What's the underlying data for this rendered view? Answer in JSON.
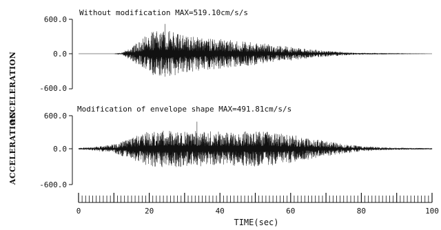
{
  "chart_data": [
    {
      "type": "line",
      "title": "Without modification  MAX=519.10cm/s/s",
      "ylabel": "ACCELERATION",
      "xlabel": "",
      "xlim": [
        0,
        100
      ],
      "ylim": [
        -600,
        600
      ],
      "yticks": [
        "600.0",
        "0.0",
        "-600.0"
      ],
      "max_abs": 519.1,
      "envelope_rise": [
        12,
        19
      ],
      "envelope_decay": [
        28,
        72
      ],
      "series": [
        {
          "values_note": "",
          "x": [
            0,
            10,
            12,
            15,
            18,
            20,
            22,
            25,
            28,
            30,
            35,
            40,
            45,
            50,
            55,
            60,
            65,
            70,
            75,
            80,
            85,
            90,
            95,
            100
          ],
          "amplitude": [
            0,
            0,
            10,
            120,
            260,
            370,
            400,
            420,
            380,
            330,
            290,
            260,
            230,
            200,
            160,
            120,
            80,
            50,
            30,
            15,
            8,
            4,
            2,
            0
          ]
        }
      ]
    },
    {
      "type": "line",
      "title": "Modification of envelope shape  MAX=491.81cm/s/s",
      "ylabel": "ACCELERATION",
      "xlabel": "TIME(sec)",
      "xlim": [
        0,
        100
      ],
      "ylim": [
        -600,
        600
      ],
      "yticks": [
        "600.0",
        "0.0",
        "-600.0"
      ],
      "xticks": [
        "0",
        "20",
        "40",
        "60",
        "80",
        "100"
      ],
      "max_abs": 491.81,
      "series": [
        {
          "x": [
            0,
            5,
            10,
            15,
            20,
            25,
            30,
            35,
            40,
            45,
            50,
            55,
            60,
            65,
            70,
            75,
            80,
            85,
            90,
            95,
            100
          ],
          "amplitude": [
            15,
            40,
            80,
            200,
            320,
            340,
            330,
            320,
            310,
            320,
            330,
            300,
            260,
            200,
            140,
            90,
            50,
            30,
            20,
            15,
            10
          ]
        }
      ]
    }
  ]
}
